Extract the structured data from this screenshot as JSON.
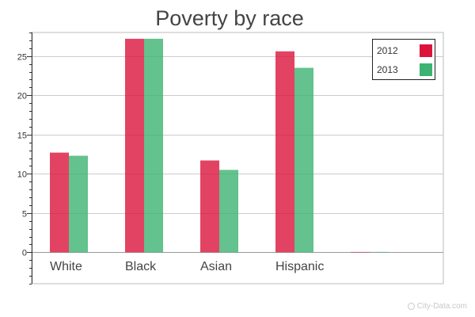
{
  "chart_data": {
    "type": "bar",
    "title": "Poverty by race",
    "categories": [
      "White",
      "Black",
      "Asian",
      "Hispanic",
      ""
    ],
    "series": [
      {
        "name": "2012",
        "color": "#dc143c",
        "values": [
          12.7,
          27.2,
          11.7,
          25.6,
          0
        ]
      },
      {
        "name": "2013",
        "color": "#3cb371",
        "values": [
          12.3,
          27.2,
          10.5,
          23.5,
          0
        ]
      }
    ],
    "ylim": [
      -4,
      28
    ],
    "yticks": [
      0,
      5,
      10,
      15,
      20,
      25
    ],
    "xlabel": "",
    "ylabel": "",
    "grid": true,
    "legend": "top-right"
  },
  "watermark": "City-Data.com"
}
